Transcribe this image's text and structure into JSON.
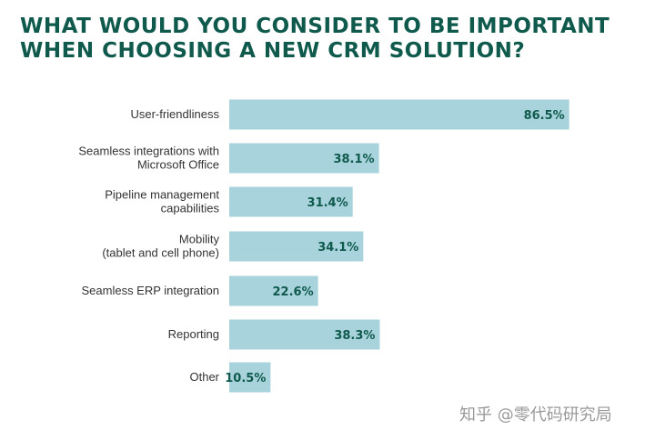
{
  "chart_data": {
    "type": "bar",
    "orientation": "horizontal",
    "title": "WHAT WOULD YOU CONSIDER TO BE IMPORTANT WHEN CHOOSING A NEW CRM SOLUTION?",
    "title_lines": [
      "WHAT WOULD YOU CONSIDER TO BE IMPORTANT",
      "WHEN CHOOSING A NEW CRM SOLUTION?"
    ],
    "categories": [
      [
        "User-friendliness"
      ],
      [
        "Seamless integrations with",
        "Microsoft Office"
      ],
      [
        "Pipeline management",
        "capabilities"
      ],
      [
        "Mobility",
        "(tablet and cell phone)"
      ],
      [
        "Seamless ERP integration"
      ],
      [
        "Reporting"
      ],
      [
        "Other"
      ]
    ],
    "values": [
      86.5,
      38.1,
      31.4,
      34.1,
      22.6,
      38.3,
      10.5
    ],
    "value_labels": [
      "86.5%",
      "38.1%",
      "31.4%",
      "34.1%",
      "22.6%",
      "38.3%",
      "10.5%"
    ],
    "xlim": [
      0,
      100
    ],
    "grid": false,
    "bar_color": "#a8d3dc",
    "title_color": "#0f5a4c",
    "value_label_color": "#0f5a4c"
  },
  "watermark": "知乎 @零代码研究局"
}
